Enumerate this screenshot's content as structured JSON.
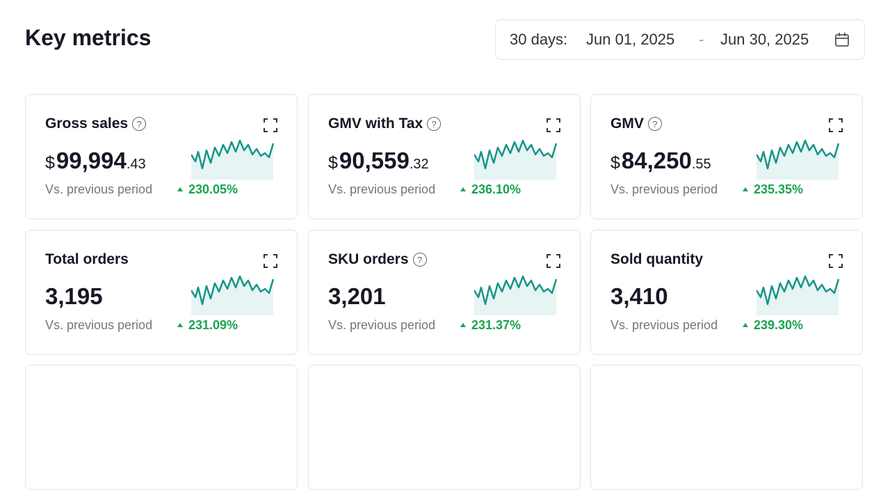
{
  "header": {
    "title": "Key metrics",
    "range_label": "30 days:",
    "start_date": "Jun 01, 2025",
    "separator": "-",
    "end_date": "Jun 30, 2025"
  },
  "cards": [
    {
      "title": "Gross sales",
      "help": true,
      "currency": "$",
      "value": "99,994",
      "decimals": ".43",
      "compare_label": "Vs. previous period",
      "change": "230.05%"
    },
    {
      "title": "GMV with Tax",
      "help": true,
      "currency": "$",
      "value": "90,559",
      "decimals": ".32",
      "compare_label": "Vs. previous period",
      "change": "236.10%"
    },
    {
      "title": "GMV",
      "help": true,
      "currency": "$",
      "value": "84,250",
      "decimals": ".55",
      "compare_label": "Vs. previous period",
      "change": "235.35%"
    },
    {
      "title": "Total orders",
      "help": false,
      "value": "3,195",
      "compare_label": "Vs. previous period",
      "change": "231.09%"
    },
    {
      "title": "SKU orders",
      "help": true,
      "value": "3,201",
      "compare_label": "Vs. previous period",
      "change": "231.37%"
    },
    {
      "title": "Sold quantity",
      "help": false,
      "value": "3,410",
      "compare_label": "Vs. previous period",
      "change": "239.30%"
    }
  ]
}
